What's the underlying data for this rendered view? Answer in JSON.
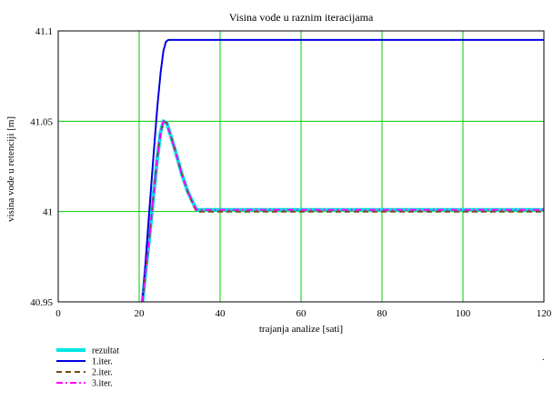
{
  "chart_data": {
    "type": "line",
    "title": "Visina vode u raznim iteracijama",
    "xlabel": "trajanja analize [sati]",
    "ylabel": "visina vode u retenciji [m]",
    "xlim": [
      0,
      120
    ],
    "ylim": [
      40.95,
      41.1
    ],
    "xticks": [
      0,
      20,
      40,
      60,
      80,
      100,
      120
    ],
    "yticks": [
      40.95,
      41,
      41.05,
      41.1
    ],
    "ytick_labels": [
      "40.95",
      "41",
      "41.05",
      "41.1"
    ],
    "grid": true,
    "grid_color": "#00cc00",
    "legend_placement": "bottom-left",
    "series": [
      {
        "name": "rezultat",
        "color": "#00e5e5",
        "style": "solid",
        "x": [
          20.8,
          21.5,
          22.5,
          23.5,
          24.5,
          25.3,
          26,
          26.8,
          27.8,
          29,
          30.5,
          32,
          33.5,
          34.2,
          36,
          50,
          80,
          120
        ],
        "y": [
          40.95,
          40.965,
          40.985,
          41.008,
          41.03,
          41.044,
          41.05,
          41.049,
          41.042,
          41.033,
          41.021,
          41.011,
          41.004,
          41.001,
          41.001,
          41.001,
          41.001,
          41.001
        ]
      },
      {
        "name": "1.iter.",
        "color": "#0000e0",
        "style": "solid",
        "x": [
          20.8,
          21.5,
          22.5,
          23.5,
          24.5,
          25.3,
          26,
          26.6,
          27.2,
          28,
          30,
          50,
          80,
          120
        ],
        "y": [
          40.95,
          40.97,
          41.0,
          41.03,
          41.058,
          41.077,
          41.089,
          41.094,
          41.095,
          41.095,
          41.095,
          41.095,
          41.095,
          41.095
        ]
      },
      {
        "name": "2.iter.",
        "color": "#7a4a10",
        "style": "dashed",
        "x": [
          20.8,
          21.5,
          22.5,
          23.5,
          24.5,
          25.3,
          26,
          26.8,
          27.8,
          29,
          30.5,
          32,
          33.5,
          34.2,
          36,
          50,
          80,
          120
        ],
        "y": [
          40.95,
          40.965,
          40.985,
          41.008,
          41.03,
          41.044,
          41.05,
          41.049,
          41.042,
          41.033,
          41.021,
          41.011,
          41.003,
          41.0,
          41.0,
          41.0,
          41.0,
          41.0
        ]
      },
      {
        "name": "3.iter.",
        "color": "#ff00ff",
        "style": "dashdot",
        "x": [
          20.8,
          21.5,
          22.5,
          23.5,
          24.5,
          25.3,
          26,
          26.8,
          27.8,
          29,
          30.5,
          32,
          33.5,
          34.2,
          36,
          50,
          80,
          120
        ],
        "y": [
          40.95,
          40.965,
          40.985,
          41.008,
          41.03,
          41.044,
          41.05,
          41.049,
          41.042,
          41.033,
          41.021,
          41.011,
          41.004,
          41.001,
          41.001,
          41.001,
          41.001,
          41.001
        ]
      }
    ]
  }
}
